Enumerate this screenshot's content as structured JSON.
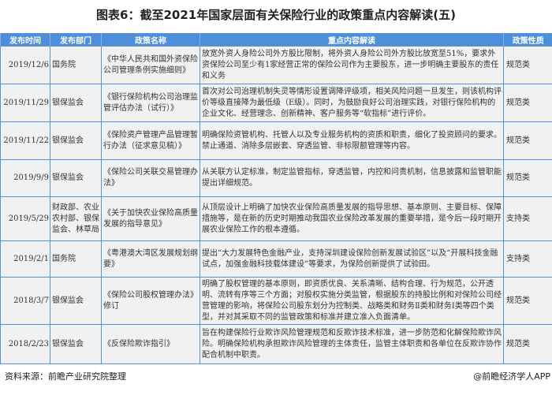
{
  "title": "图表6：截至2021年国家层面有关保险行业的政策重点内容解读(五)",
  "table": {
    "headers": [
      "发布时间",
      "发布部门",
      "政策名称",
      "重点内容解读",
      "政策性质"
    ],
    "rows": [
      {
        "date": "2019/12/6",
        "dept": "国务院",
        "name": "《中华人民共和国外资保险公司管理条例实施细则》",
        "content": "放宽外资人身险公司外方股比限制，将外资人身险公司外方股比放宽至51%，要求外资保险公司至少有1家经营正常的保险公司作为主要股东，进一步明确主要股东的责任和义务",
        "type": "规范类"
      },
      {
        "date": "2019/11/29",
        "dept": "银保监会",
        "name": "《银行保险机构公司治理监管评估办法（试行）》",
        "content": "首次对公司治理机制失灵等情形设置调降评级项，相关风险问题一旦发生，则该机构评价等级直接降为最低级（E级）。同时，为鼓励良好公司治理实践，对银行保险机构的企业文化、经营理念、创新精神、客户服务等“软指标”进行评价。",
        "type": "规范类"
      },
      {
        "date": "2019/11/22",
        "dept": "银保监会",
        "name": "《保险资产管理产品管理暂行办法（征求意见稿）》",
        "content": "明确保险资管机构、托管人以及专业服务机构的资质和职责，细化了投资顾问的要求。禁止通道、消除多层嵌套、穿透监管、非标限额管理等内容。",
        "type": "规范类"
      },
      {
        "date": "2019/9/9",
        "dept": "银保监会",
        "name": "《保险公司关联交易管理办法》",
        "content": "从关联方认定标准，制定监管指标，穿透监管，内控和问责机制，信息披露和监管职能提出详细规范。",
        "type": "规范类"
      },
      {
        "date": "2019/5/29",
        "dept": "财政部、农业农村部、银保监会、林草局",
        "name": "《关于加快农业保险高质量发展的指导意见》",
        "content": "从顶层设计上明确了加快农业保险高质量发展的指导思想、基本原则、主要目标、保障措施等，是在新的历史时期推动我国农业保险改革发展的重要举措，是今后一段时期开展农业保险工作的根本遵循。",
        "type": "支持类"
      },
      {
        "date": "2019/2/1",
        "dept": "国务院",
        "name": "《粤港澳大湾区发展规划纲要》",
        "content": "提出“大力发展特色金融产业，支持深圳建设保险创新发展试验区”以及“开展科技金融试点，加强金融科技载体建设”等要求，为保险创新提供了试验田。",
        "type": "支持类"
      },
      {
        "date": "2018/3/7",
        "dept": "银保监会",
        "name": "《保险公司股权管理办法》修订",
        "content": "明确了股权管理的基本原则，即资质优良、关系清晰、结构合理、行为规范，公开透明、流转有序等三个方面；对股权实施分类监管，根据股东的持股比例和对保险公司经营管理的影响，将保险公司股东划分为控制类、战略类和财务Ⅱ类和财务Ⅰ类等四个类型，并对其采取不同的监管政策和标准并建立准入负面清单。",
        "type": "规范类"
      },
      {
        "date": "2018/2/23",
        "dept": "银保监会",
        "name": "《反保险欺诈指引》",
        "content": "旨在构建保险行业欺诈风险管理规范和反欺诈技术标准，进一步防范和化解保险欺诈风险。明确保险机构承担欺诈风险管理的主体责任，监管主体职责和各单位在反欺诈协作配合机制中职责。",
        "type": "规范类"
      }
    ]
  },
  "footer": {
    "source": "资料来源：前瞻产业研究院整理",
    "brand": "@前瞻经济学人APP"
  },
  "colors": {
    "header_bg": "#4d8fd9",
    "border": "#5a90d6",
    "cell_bg": "#f1f1f1"
  }
}
